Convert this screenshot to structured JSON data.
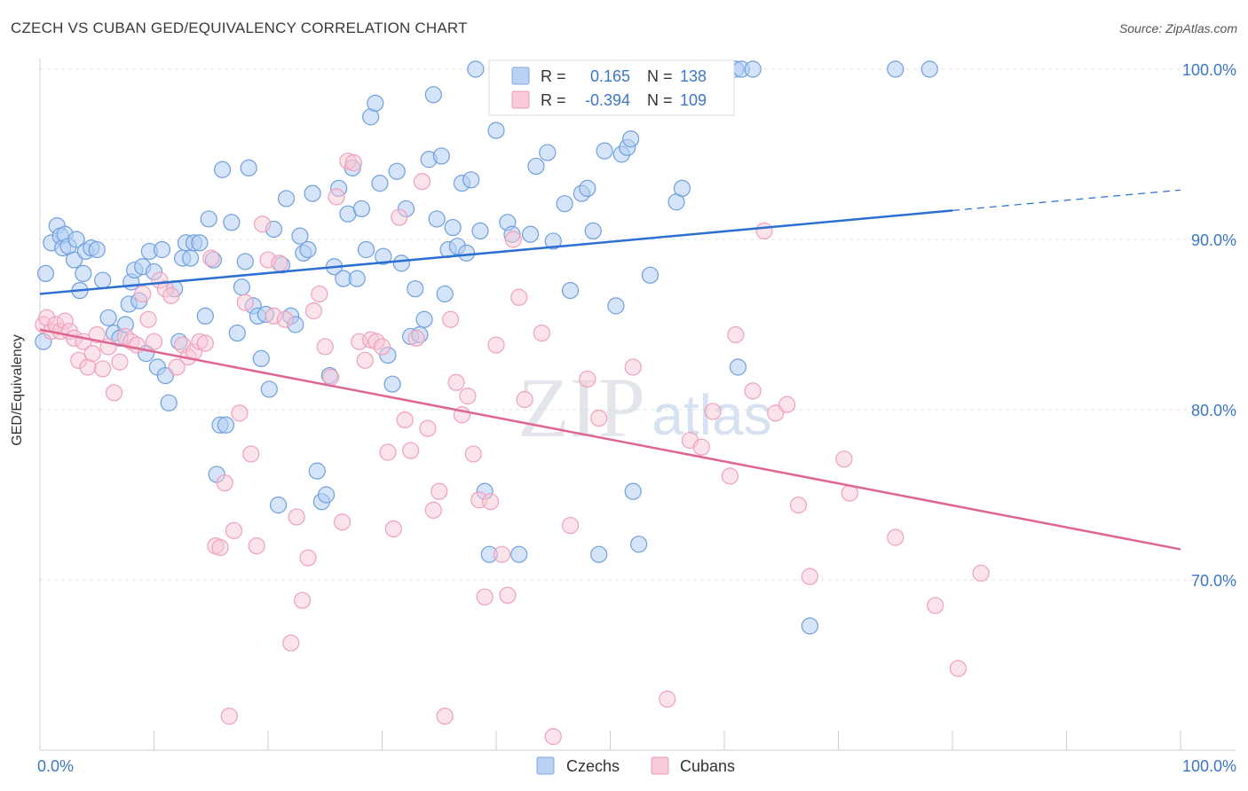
{
  "title": "CZECH VS CUBAN GED/EQUIVALENCY CORRELATION CHART",
  "source": "Source: ZipAtlas.com",
  "colors": {
    "czechs": "#5b93e0",
    "cubans": "#f19ab6",
    "czech_line": "#2a6fd1",
    "cuban_line": "#e06592",
    "axis_label": "#3c76c9"
  },
  "legend": {
    "rows": [
      {
        "r_label": "R =",
        "r_value": "0.165",
        "n_label": "N =",
        "n_value": "138"
      },
      {
        "r_label": "R =",
        "r_value": "-0.394",
        "n_label": "N =",
        "n_value": "109"
      }
    ],
    "bottom": [
      "Czechs",
      "Cubans"
    ]
  },
  "chart_data": {
    "type": "scatter",
    "title": "CZECH VS CUBAN GED/EQUIVALENCY CORRELATION CHART",
    "xlabel": "",
    "ylabel": "GED/Equivalency",
    "xlim": [
      0,
      100
    ],
    "ylim": [
      60.5,
      101.5
    ],
    "x_tick_labels": [
      "0.0%",
      "100.0%"
    ],
    "y_ticks": [
      70,
      80,
      90,
      100
    ],
    "y_tick_labels": [
      "70.0%",
      "80.0%",
      "90.0%",
      "100.0%"
    ],
    "grid": true,
    "legend_position": "top-center",
    "watermark": "ZIPatlas",
    "series": [
      {
        "name": "Czechs",
        "r": 0.165,
        "n": 138,
        "trend": {
          "x0": 0,
          "y0": 86.8,
          "x1": 80,
          "y1": 91.7,
          "dash_to": 100,
          "dash_y": 92.9
        },
        "points": [
          [
            0.3,
            84.0
          ],
          [
            0.5,
            88.0
          ],
          [
            1.0,
            89.8
          ],
          [
            1.5,
            90.8
          ],
          [
            1.8,
            90.2
          ],
          [
            2.0,
            89.5
          ],
          [
            2.2,
            90.3
          ],
          [
            2.5,
            89.6
          ],
          [
            3.0,
            88.8
          ],
          [
            3.2,
            90.0
          ],
          [
            3.5,
            87.0
          ],
          [
            3.8,
            88.0
          ],
          [
            4.0,
            89.3
          ],
          [
            4.5,
            89.5
          ],
          [
            5.0,
            89.4
          ],
          [
            5.5,
            87.6
          ],
          [
            6.0,
            85.4
          ],
          [
            6.5,
            84.5
          ],
          [
            7.0,
            84.2
          ],
          [
            7.5,
            85.0
          ],
          [
            7.8,
            86.2
          ],
          [
            8.0,
            87.5
          ],
          [
            8.3,
            88.2
          ],
          [
            8.7,
            86.4
          ],
          [
            9.0,
            88.4
          ],
          [
            9.3,
            83.3
          ],
          [
            9.6,
            89.3
          ],
          [
            10.0,
            88.1
          ],
          [
            10.3,
            82.5
          ],
          [
            10.7,
            89.4
          ],
          [
            11.0,
            82.0
          ],
          [
            11.3,
            80.4
          ],
          [
            11.8,
            87.1
          ],
          [
            12.2,
            84.0
          ],
          [
            12.5,
            88.9
          ],
          [
            12.8,
            89.8
          ],
          [
            13.2,
            88.9
          ],
          [
            13.5,
            89.8
          ],
          [
            14.0,
            89.8
          ],
          [
            14.5,
            85.5
          ],
          [
            14.8,
            91.2
          ],
          [
            15.2,
            88.8
          ],
          [
            15.5,
            76.2
          ],
          [
            15.8,
            79.1
          ],
          [
            16.0,
            94.1
          ],
          [
            16.3,
            79.1
          ],
          [
            16.8,
            91.0
          ],
          [
            17.3,
            84.5
          ],
          [
            17.7,
            87.2
          ],
          [
            18.0,
            88.7
          ],
          [
            18.3,
            94.2
          ],
          [
            18.7,
            86.1
          ],
          [
            19.1,
            85.5
          ],
          [
            19.4,
            83.0
          ],
          [
            19.8,
            85.6
          ],
          [
            20.1,
            81.2
          ],
          [
            20.5,
            90.6
          ],
          [
            20.9,
            74.4
          ],
          [
            21.2,
            88.5
          ],
          [
            21.6,
            92.4
          ],
          [
            22.0,
            85.5
          ],
          [
            22.4,
            85.0
          ],
          [
            22.8,
            90.2
          ],
          [
            23.1,
            89.2
          ],
          [
            23.5,
            89.4
          ],
          [
            23.9,
            92.7
          ],
          [
            24.3,
            76.4
          ],
          [
            24.7,
            74.6
          ],
          [
            25.1,
            75.0
          ],
          [
            25.4,
            82.0
          ],
          [
            25.8,
            88.4
          ],
          [
            26.2,
            93.0
          ],
          [
            26.6,
            87.7
          ],
          [
            27.0,
            91.5
          ],
          [
            27.4,
            94.2
          ],
          [
            27.8,
            87.7
          ],
          [
            28.2,
            91.8
          ],
          [
            28.6,
            89.4
          ],
          [
            29.0,
            97.2
          ],
          [
            29.4,
            98.0
          ],
          [
            29.8,
            93.3
          ],
          [
            30.1,
            89.0
          ],
          [
            30.5,
            83.2
          ],
          [
            30.9,
            81.5
          ],
          [
            31.3,
            94.0
          ],
          [
            31.7,
            88.6
          ],
          [
            32.1,
            91.8
          ],
          [
            32.5,
            84.3
          ],
          [
            32.9,
            87.1
          ],
          [
            33.3,
            84.4
          ],
          [
            33.7,
            85.3
          ],
          [
            34.1,
            94.7
          ],
          [
            34.5,
            98.5
          ],
          [
            34.8,
            91.2
          ],
          [
            35.2,
            94.9
          ],
          [
            35.5,
            86.8
          ],
          [
            35.8,
            89.4
          ],
          [
            36.2,
            90.7
          ],
          [
            36.6,
            89.6
          ],
          [
            37.0,
            93.3
          ],
          [
            37.4,
            89.2
          ],
          [
            37.8,
            93.5
          ],
          [
            38.2,
            100.0
          ],
          [
            38.6,
            90.5
          ],
          [
            39.0,
            75.2
          ],
          [
            39.4,
            71.5
          ],
          [
            40.0,
            96.4
          ],
          [
            41.0,
            91.0
          ],
          [
            41.4,
            90.3
          ],
          [
            42.0,
            71.5
          ],
          [
            43.0,
            90.3
          ],
          [
            43.5,
            94.3
          ],
          [
            44.5,
            95.1
          ],
          [
            45.0,
            89.9
          ],
          [
            46.0,
            92.1
          ],
          [
            46.5,
            87.0
          ],
          [
            47.5,
            92.7
          ],
          [
            48.0,
            93.0
          ],
          [
            48.5,
            90.5
          ],
          [
            49.0,
            71.5
          ],
          [
            49.5,
            95.2
          ],
          [
            50.5,
            86.1
          ],
          [
            51.0,
            95.0
          ],
          [
            51.5,
            95.4
          ],
          [
            51.8,
            95.9
          ],
          [
            52.0,
            75.2
          ],
          [
            52.5,
            72.1
          ],
          [
            53.5,
            87.9
          ],
          [
            55.5,
            100.0
          ],
          [
            55.8,
            92.2
          ],
          [
            56.3,
            93.0
          ],
          [
            57.0,
            100.0
          ],
          [
            61.0,
            100.0
          ],
          [
            61.2,
            82.5
          ],
          [
            61.5,
            100.0
          ],
          [
            62.5,
            100.0
          ],
          [
            67.5,
            67.3
          ],
          [
            75.0,
            100.0
          ],
          [
            78.0,
            100.0
          ]
        ]
      },
      {
        "name": "Cubans",
        "r": -0.394,
        "n": 109,
        "trend": {
          "x0": 0,
          "y0": 84.7,
          "x1": 100,
          "y1": 71.8
        },
        "points": [
          [
            0.3,
            85.0
          ],
          [
            0.6,
            85.4
          ],
          [
            1.0,
            84.6
          ],
          [
            1.4,
            85.0
          ],
          [
            1.8,
            84.6
          ],
          [
            2.2,
            85.2
          ],
          [
            2.6,
            84.6
          ],
          [
            3.0,
            84.2
          ],
          [
            3.4,
            82.9
          ],
          [
            3.8,
            84.0
          ],
          [
            4.2,
            82.5
          ],
          [
            4.6,
            83.3
          ],
          [
            5.0,
            84.4
          ],
          [
            5.5,
            82.4
          ],
          [
            6.0,
            83.7
          ],
          [
            6.5,
            81.0
          ],
          [
            7.0,
            82.8
          ],
          [
            7.5,
            84.3
          ],
          [
            8.0,
            84.0
          ],
          [
            8.5,
            83.8
          ],
          [
            9.0,
            86.8
          ],
          [
            9.5,
            85.3
          ],
          [
            10.0,
            84.0
          ],
          [
            10.5,
            87.6
          ],
          [
            11.0,
            87.1
          ],
          [
            11.5,
            86.7
          ],
          [
            12.0,
            82.5
          ],
          [
            12.5,
            83.8
          ],
          [
            13.0,
            83.1
          ],
          [
            13.5,
            83.4
          ],
          [
            14.0,
            84.0
          ],
          [
            14.5,
            83.9
          ],
          [
            15.0,
            88.9
          ],
          [
            15.4,
            72.0
          ],
          [
            15.8,
            71.9
          ],
          [
            16.2,
            75.7
          ],
          [
            16.6,
            62.0
          ],
          [
            17.0,
            72.9
          ],
          [
            17.5,
            79.8
          ],
          [
            18.0,
            86.3
          ],
          [
            18.5,
            77.4
          ],
          [
            19.0,
            72.0
          ],
          [
            19.5,
            90.9
          ],
          [
            20.0,
            88.8
          ],
          [
            20.5,
            85.5
          ],
          [
            21.0,
            88.6
          ],
          [
            21.5,
            85.3
          ],
          [
            22.0,
            66.3
          ],
          [
            22.5,
            73.7
          ],
          [
            23.0,
            68.8
          ],
          [
            23.5,
            71.3
          ],
          [
            24.0,
            85.8
          ],
          [
            24.5,
            86.8
          ],
          [
            25.0,
            83.7
          ],
          [
            25.5,
            81.9
          ],
          [
            26.0,
            92.5
          ],
          [
            26.5,
            73.4
          ],
          [
            27.0,
            94.6
          ],
          [
            27.5,
            94.5
          ],
          [
            28.0,
            84.0
          ],
          [
            28.5,
            82.9
          ],
          [
            29.0,
            84.1
          ],
          [
            29.5,
            84.0
          ],
          [
            30.0,
            83.7
          ],
          [
            30.5,
            77.5
          ],
          [
            31.0,
            73.0
          ],
          [
            31.5,
            91.3
          ],
          [
            32.0,
            79.4
          ],
          [
            32.5,
            77.6
          ],
          [
            33.0,
            84.2
          ],
          [
            33.5,
            93.4
          ],
          [
            34.0,
            78.9
          ],
          [
            34.5,
            74.1
          ],
          [
            35.0,
            75.2
          ],
          [
            35.5,
            62.0
          ],
          [
            36.0,
            85.3
          ],
          [
            36.5,
            81.6
          ],
          [
            37.0,
            79.7
          ],
          [
            37.5,
            80.8
          ],
          [
            38.0,
            77.4
          ],
          [
            38.5,
            74.7
          ],
          [
            39.0,
            69.0
          ],
          [
            39.5,
            74.6
          ],
          [
            40.0,
            83.8
          ],
          [
            40.5,
            71.5
          ],
          [
            41.0,
            69.1
          ],
          [
            41.5,
            90.0
          ],
          [
            42.0,
            86.6
          ],
          [
            42.5,
            80.6
          ],
          [
            44.0,
            84.5
          ],
          [
            45.0,
            60.8
          ],
          [
            46.5,
            73.2
          ],
          [
            48.0,
            81.8
          ],
          [
            49.0,
            79.5
          ],
          [
            52.0,
            82.5
          ],
          [
            55.0,
            63.0
          ],
          [
            57.0,
            78.2
          ],
          [
            58.0,
            77.8
          ],
          [
            59.0,
            79.9
          ],
          [
            60.5,
            76.1
          ],
          [
            61.0,
            84.4
          ],
          [
            62.5,
            81.1
          ],
          [
            63.5,
            90.5
          ],
          [
            64.5,
            79.8
          ],
          [
            65.5,
            80.3
          ],
          [
            66.5,
            74.4
          ],
          [
            67.5,
            70.2
          ],
          [
            70.5,
            77.1
          ],
          [
            71.0,
            75.1
          ],
          [
            75.0,
            72.5
          ],
          [
            78.5,
            68.5
          ],
          [
            80.5,
            64.8
          ],
          [
            82.5,
            70.4
          ]
        ]
      }
    ]
  }
}
